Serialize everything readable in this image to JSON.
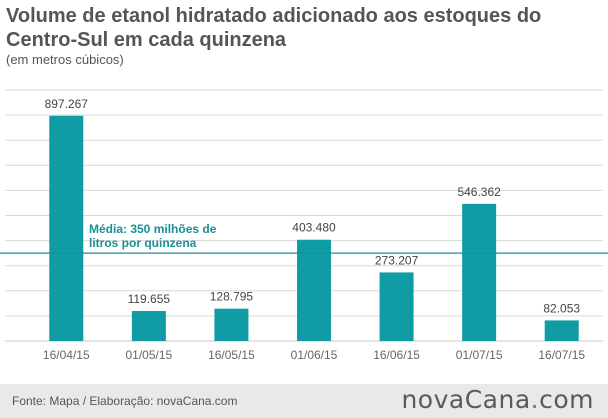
{
  "header": {
    "title": "Volume de etanol hidratado adicionado aos estoques do Centro-Sul em cada quinzena",
    "subtitle": "(em metros cúbicos)"
  },
  "footer": {
    "source": "Fonte: Mapa / Elaboração: novaCana.com",
    "logo_main": "novaCana",
    "logo_dot": ".",
    "logo_tld": "com"
  },
  "colors": {
    "bar": "#109ca4",
    "average_line": "#1b8f97",
    "grid": "#d9d9d9",
    "text": "#444444"
  },
  "chart_data": {
    "type": "bar",
    "title": "Volume de etanol hidratado adicionado aos estoques do Centro-Sul em cada quinzena",
    "ylabel": "(em metros cúbicos)",
    "xlabel": "",
    "categories": [
      "16/04/15",
      "01/05/15",
      "16/05/15",
      "01/06/15",
      "16/06/15",
      "01/07/15",
      "16/07/15"
    ],
    "values": [
      897267,
      119655,
      128795,
      403480,
      273207,
      546362,
      82053
    ],
    "value_labels": [
      "897.267",
      "119.655",
      "128.795",
      "403.480",
      "273.207",
      "546.362",
      "82.053"
    ],
    "ylim": [
      0,
      1000000
    ],
    "grid": true,
    "average": {
      "value": 350000,
      "label_line1": "Média: 350 milhões de",
      "label_line2": "litros por quinzena"
    }
  }
}
